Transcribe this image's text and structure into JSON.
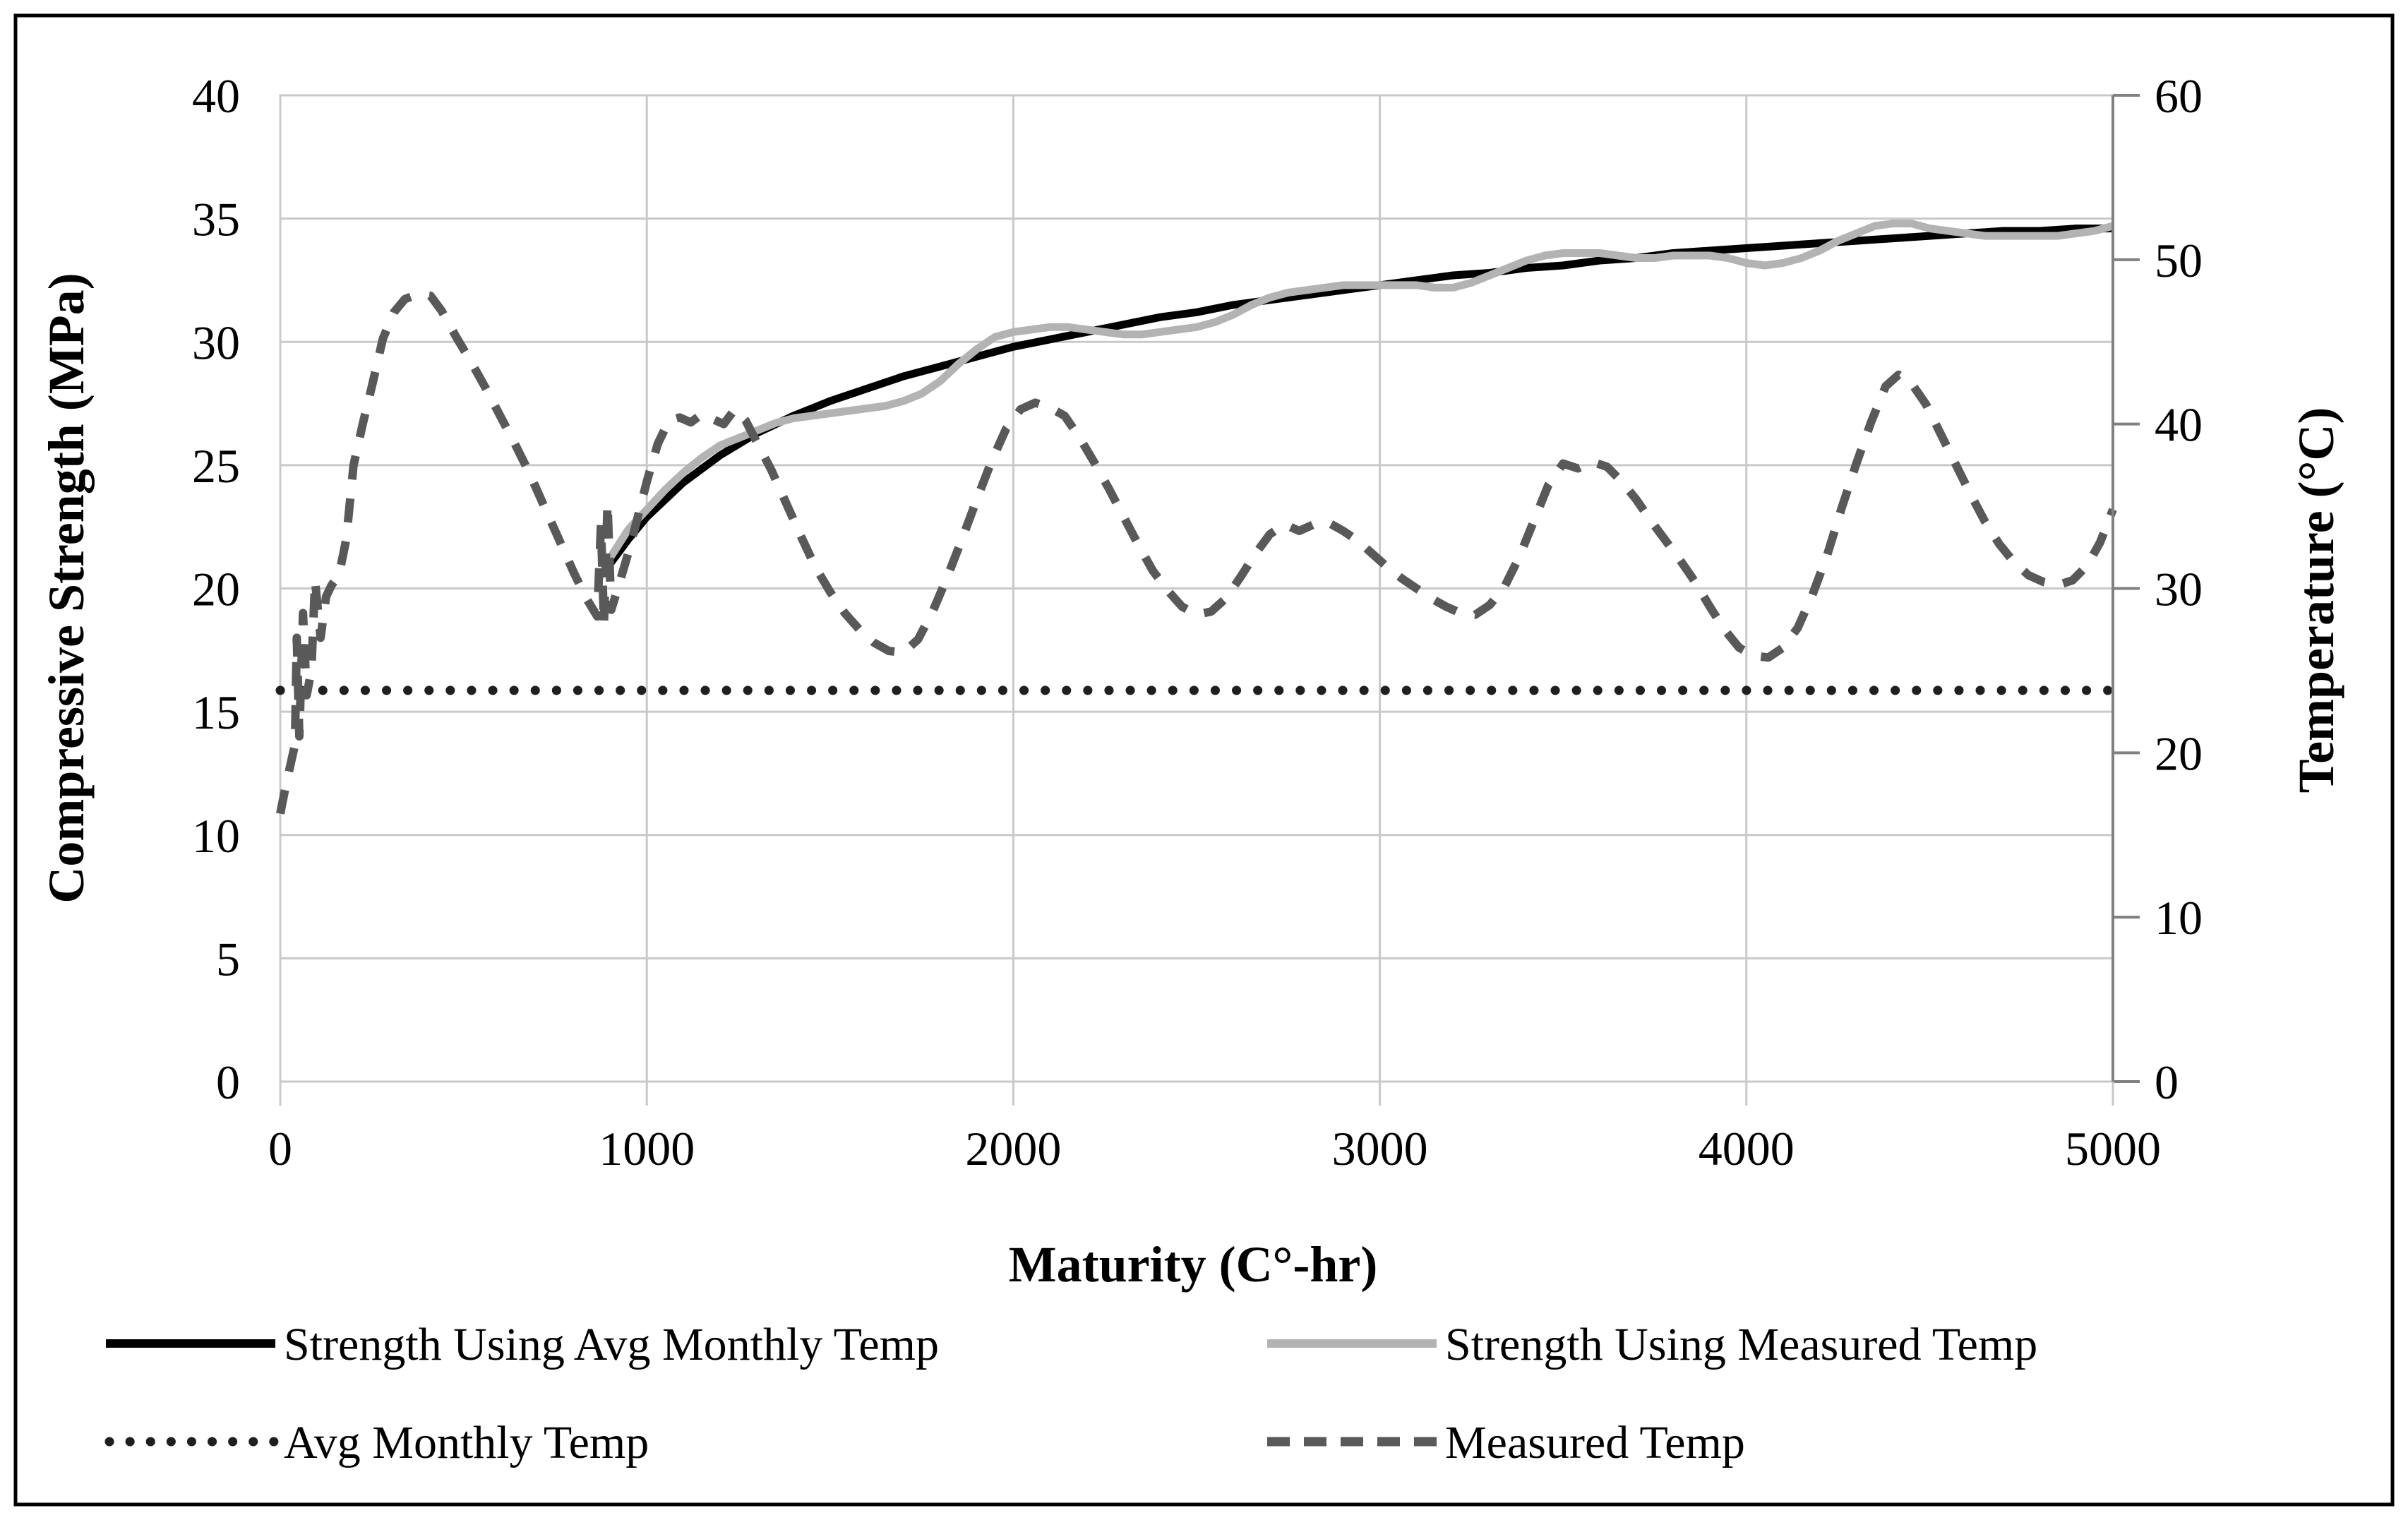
{
  "chart_data": {
    "type": "line",
    "title": "",
    "xlabel": "Maturity (C°-hr)",
    "ylabel_left": "Compressive Strength (MPa)",
    "ylabel_right": "Temperature (°C)",
    "x_range": [
      0,
      5000
    ],
    "x_ticks": [
      0,
      1000,
      2000,
      3000,
      4000,
      5000
    ],
    "left_axis": {
      "label": "Compressive Strength (MPa)",
      "range": [
        0,
        40
      ],
      "ticks": [
        0,
        5,
        10,
        15,
        20,
        25,
        30,
        35,
        40
      ]
    },
    "right_axis": {
      "label": "Temperature (°C)",
      "range": [
        0,
        60
      ],
      "ticks": [
        0,
        10,
        20,
        30,
        40,
        50,
        60
      ]
    },
    "grid": {
      "horizontal": true,
      "vertical": true,
      "color": "#c9c9c9"
    },
    "legend_position": "bottom",
    "colors": {
      "strength_avg": "#000000",
      "strength_measured": "#b3b3b3",
      "avg_monthly_temp": "#1f1f1f",
      "measured_temp": "#595959",
      "gridline": "#c9c9c9",
      "secondary_axis": "#808080",
      "figure_border": "#000000"
    },
    "series": [
      {
        "name": "Strength Using Avg Monthly Temp",
        "axis": "left",
        "style": "solid",
        "color": "#000000",
        "width": 11,
        "points": [
          [
            880,
            20.6
          ],
          [
            950,
            22.0
          ],
          [
            1000,
            22.9
          ],
          [
            1100,
            24.3
          ],
          [
            1200,
            25.4
          ],
          [
            1300,
            26.3
          ],
          [
            1400,
            27.0
          ],
          [
            1500,
            27.6
          ],
          [
            1600,
            28.1
          ],
          [
            1700,
            28.6
          ],
          [
            1800,
            29.0
          ],
          [
            1900,
            29.4
          ],
          [
            2000,
            29.8
          ],
          [
            2100,
            30.1
          ],
          [
            2200,
            30.4
          ],
          [
            2300,
            30.7
          ],
          [
            2400,
            31.0
          ],
          [
            2500,
            31.2
          ],
          [
            2600,
            31.5
          ],
          [
            2700,
            31.7
          ],
          [
            2800,
            31.9
          ],
          [
            2900,
            32.1
          ],
          [
            3000,
            32.3
          ],
          [
            3100,
            32.5
          ],
          [
            3200,
            32.7
          ],
          [
            3300,
            32.8
          ],
          [
            3400,
            33.0
          ],
          [
            3500,
            33.1
          ],
          [
            3600,
            33.3
          ],
          [
            3700,
            33.4
          ],
          [
            3800,
            33.6
          ],
          [
            3900,
            33.7
          ],
          [
            4000,
            33.8
          ],
          [
            4100,
            33.9
          ],
          [
            4200,
            34.0
          ],
          [
            4300,
            34.1
          ],
          [
            4400,
            34.2
          ],
          [
            4500,
            34.3
          ],
          [
            4600,
            34.4
          ],
          [
            4700,
            34.5
          ],
          [
            4800,
            34.5
          ],
          [
            4900,
            34.6
          ],
          [
            5000,
            34.6
          ]
        ]
      },
      {
        "name": "Strength Using Measured Temp",
        "axis": "left",
        "style": "solid",
        "color": "#b3b3b3",
        "width": 11,
        "points": [
          [
            885,
            20.9
          ],
          [
            950,
            22.4
          ],
          [
            1000,
            23.2
          ],
          [
            1050,
            24.0
          ],
          [
            1100,
            24.7
          ],
          [
            1150,
            25.3
          ],
          [
            1200,
            25.8
          ],
          [
            1250,
            26.1
          ],
          [
            1300,
            26.4
          ],
          [
            1350,
            26.7
          ],
          [
            1400,
            26.9
          ],
          [
            1450,
            27.0
          ],
          [
            1500,
            27.1
          ],
          [
            1550,
            27.2
          ],
          [
            1600,
            27.3
          ],
          [
            1650,
            27.4
          ],
          [
            1700,
            27.6
          ],
          [
            1750,
            27.9
          ],
          [
            1800,
            28.4
          ],
          [
            1850,
            29.1
          ],
          [
            1900,
            29.7
          ],
          [
            1950,
            30.2
          ],
          [
            2000,
            30.4
          ],
          [
            2050,
            30.5
          ],
          [
            2100,
            30.6
          ],
          [
            2150,
            30.6
          ],
          [
            2200,
            30.5
          ],
          [
            2250,
            30.4
          ],
          [
            2300,
            30.3
          ],
          [
            2350,
            30.3
          ],
          [
            2400,
            30.4
          ],
          [
            2450,
            30.5
          ],
          [
            2500,
            30.6
          ],
          [
            2550,
            30.8
          ],
          [
            2600,
            31.1
          ],
          [
            2650,
            31.5
          ],
          [
            2700,
            31.8
          ],
          [
            2750,
            32.0
          ],
          [
            2800,
            32.1
          ],
          [
            2850,
            32.2
          ],
          [
            2900,
            32.3
          ],
          [
            2950,
            32.3
          ],
          [
            3000,
            32.3
          ],
          [
            3050,
            32.3
          ],
          [
            3100,
            32.3
          ],
          [
            3150,
            32.2
          ],
          [
            3200,
            32.2
          ],
          [
            3250,
            32.4
          ],
          [
            3300,
            32.7
          ],
          [
            3350,
            33.0
          ],
          [
            3400,
            33.3
          ],
          [
            3450,
            33.5
          ],
          [
            3500,
            33.6
          ],
          [
            3550,
            33.6
          ],
          [
            3600,
            33.6
          ],
          [
            3650,
            33.5
          ],
          [
            3700,
            33.4
          ],
          [
            3750,
            33.4
          ],
          [
            3800,
            33.5
          ],
          [
            3850,
            33.5
          ],
          [
            3900,
            33.5
          ],
          [
            3950,
            33.4
          ],
          [
            4000,
            33.2
          ],
          [
            4050,
            33.1
          ],
          [
            4100,
            33.2
          ],
          [
            4150,
            33.4
          ],
          [
            4200,
            33.7
          ],
          [
            4250,
            34.1
          ],
          [
            4300,
            34.4
          ],
          [
            4350,
            34.7
          ],
          [
            4400,
            34.8
          ],
          [
            4450,
            34.8
          ],
          [
            4500,
            34.6
          ],
          [
            4550,
            34.5
          ],
          [
            4600,
            34.4
          ],
          [
            4650,
            34.3
          ],
          [
            4700,
            34.3
          ],
          [
            4750,
            34.3
          ],
          [
            4800,
            34.3
          ],
          [
            4850,
            34.3
          ],
          [
            4900,
            34.4
          ],
          [
            4950,
            34.5
          ],
          [
            5000,
            34.7
          ]
        ]
      },
      {
        "name": "Avg Monthly Temp",
        "axis": "right",
        "style": "dotted",
        "color": "#1f1f1f",
        "width": 13,
        "points": [
          [
            0,
            23.8
          ],
          [
            5000,
            23.8
          ]
        ]
      },
      {
        "name": "Measured Temp",
        "axis": "right",
        "style": "dashed",
        "color": "#595959",
        "width": 12,
        "points": [
          [
            0,
            16.3
          ],
          [
            15,
            18.0
          ],
          [
            30,
            19.5
          ],
          [
            40,
            20.5
          ],
          [
            45,
            27.0
          ],
          [
            52,
            21.0
          ],
          [
            62,
            28.5
          ],
          [
            72,
            23.5
          ],
          [
            85,
            25.0
          ],
          [
            95,
            30.5
          ],
          [
            110,
            27.0
          ],
          [
            125,
            29.5
          ],
          [
            140,
            30.2
          ],
          [
            160,
            30.8
          ],
          [
            180,
            33.0
          ],
          [
            200,
            37.5
          ],
          [
            225,
            40.0
          ],
          [
            250,
            42.3
          ],
          [
            280,
            45.2
          ],
          [
            310,
            46.8
          ],
          [
            340,
            47.6
          ],
          [
            375,
            47.9
          ],
          [
            410,
            47.8
          ],
          [
            440,
            46.9
          ],
          [
            480,
            45.3
          ],
          [
            520,
            43.8
          ],
          [
            560,
            42.2
          ],
          [
            600,
            40.5
          ],
          [
            640,
            38.8
          ],
          [
            680,
            37.0
          ],
          [
            720,
            35.0
          ],
          [
            760,
            33.0
          ],
          [
            800,
            31.0
          ],
          [
            835,
            29.4
          ],
          [
            865,
            28.3
          ],
          [
            875,
            33.9
          ],
          [
            883,
            27.8
          ],
          [
            893,
            35.2
          ],
          [
            903,
            28.7
          ],
          [
            925,
            30.3
          ],
          [
            950,
            32.2
          ],
          [
            975,
            34.3
          ],
          [
            1000,
            36.5
          ],
          [
            1030,
            38.8
          ],
          [
            1060,
            40.2
          ],
          [
            1090,
            40.4
          ],
          [
            1120,
            40.1
          ],
          [
            1150,
            40.6
          ],
          [
            1180,
            40.3
          ],
          [
            1210,
            40.0
          ],
          [
            1240,
            40.9
          ],
          [
            1270,
            40.2
          ],
          [
            1300,
            38.9
          ],
          [
            1340,
            37.2
          ],
          [
            1380,
            35.2
          ],
          [
            1420,
            33.2
          ],
          [
            1460,
            31.3
          ],
          [
            1500,
            29.8
          ],
          [
            1540,
            28.5
          ],
          [
            1580,
            27.5
          ],
          [
            1620,
            26.7
          ],
          [
            1660,
            26.2
          ],
          [
            1700,
            26.1
          ],
          [
            1740,
            26.9
          ],
          [
            1780,
            28.6
          ],
          [
            1820,
            30.7
          ],
          [
            1860,
            33.0
          ],
          [
            1900,
            35.4
          ],
          [
            1940,
            37.7
          ],
          [
            1980,
            39.7
          ],
          [
            2020,
            40.9
          ],
          [
            2060,
            41.3
          ],
          [
            2100,
            41.0
          ],
          [
            2140,
            40.5
          ],
          [
            2180,
            39.2
          ],
          [
            2220,
            37.7
          ],
          [
            2260,
            36.1
          ],
          [
            2300,
            34.4
          ],
          [
            2340,
            32.7
          ],
          [
            2380,
            31.1
          ],
          [
            2420,
            29.9
          ],
          [
            2460,
            28.9
          ],
          [
            2500,
            28.4
          ],
          [
            2540,
            28.6
          ],
          [
            2580,
            29.4
          ],
          [
            2620,
            30.7
          ],
          [
            2660,
            32.1
          ],
          [
            2700,
            33.3
          ],
          [
            2740,
            33.9
          ],
          [
            2780,
            33.5
          ],
          [
            2820,
            33.9
          ],
          [
            2860,
            34.0
          ],
          [
            2900,
            33.5
          ],
          [
            2940,
            32.9
          ],
          [
            2980,
            32.1
          ],
          [
            3020,
            31.3
          ],
          [
            3060,
            30.6
          ],
          [
            3100,
            30.0
          ],
          [
            3140,
            29.4
          ],
          [
            3180,
            28.9
          ],
          [
            3220,
            28.5
          ],
          [
            3260,
            28.4
          ],
          [
            3300,
            29.0
          ],
          [
            3340,
            30.1
          ],
          [
            3380,
            31.9
          ],
          [
            3420,
            34.1
          ],
          [
            3460,
            36.3
          ],
          [
            3500,
            37.6
          ],
          [
            3540,
            37.3
          ],
          [
            3580,
            37.7
          ],
          [
            3620,
            37.4
          ],
          [
            3660,
            36.5
          ],
          [
            3700,
            35.4
          ],
          [
            3740,
            34.1
          ],
          [
            3780,
            32.9
          ],
          [
            3820,
            31.7
          ],
          [
            3860,
            30.4
          ],
          [
            3900,
            28.9
          ],
          [
            3940,
            27.5
          ],
          [
            3980,
            26.4
          ],
          [
            4020,
            25.9
          ],
          [
            4060,
            25.8
          ],
          [
            4100,
            26.4
          ],
          [
            4140,
            27.6
          ],
          [
            4180,
            29.6
          ],
          [
            4220,
            32.0
          ],
          [
            4260,
            34.9
          ],
          [
            4300,
            37.6
          ],
          [
            4340,
            40.1
          ],
          [
            4380,
            42.3
          ],
          [
            4415,
            43.0
          ],
          [
            4450,
            42.5
          ],
          [
            4490,
            41.2
          ],
          [
            4530,
            39.4
          ],
          [
            4570,
            37.6
          ],
          [
            4610,
            35.8
          ],
          [
            4650,
            34.1
          ],
          [
            4690,
            32.7
          ],
          [
            4730,
            31.6
          ],
          [
            4770,
            30.8
          ],
          [
            4810,
            30.4
          ],
          [
            4850,
            30.2
          ],
          [
            4890,
            30.5
          ],
          [
            4930,
            31.4
          ],
          [
            4965,
            32.8
          ],
          [
            5000,
            34.8
          ]
        ]
      }
    ]
  }
}
